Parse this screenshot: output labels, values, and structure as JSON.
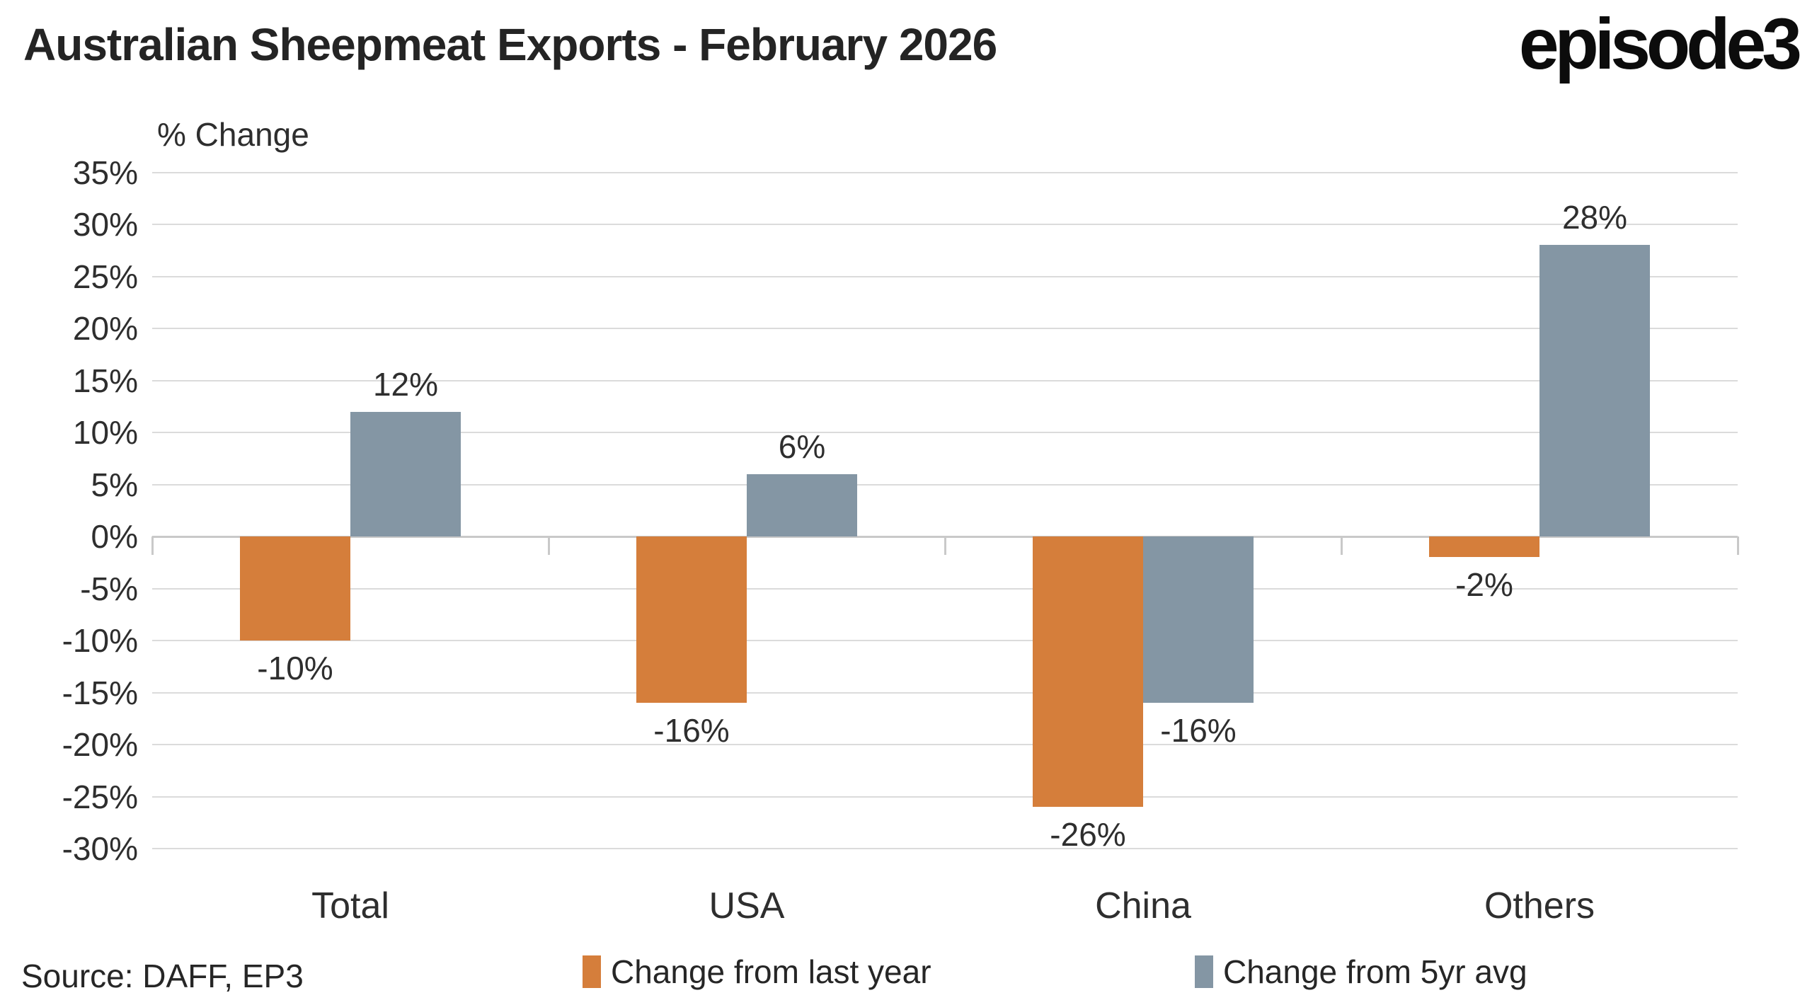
{
  "header": {
    "title": "Australian Sheepmeat Exports - February 2026",
    "logo_text": "episode3"
  },
  "footer": {
    "source": "Source: DAFF, EP3"
  },
  "chart_data": {
    "type": "bar",
    "title": "Australian Sheepmeat Exports - February 2026",
    "y_axis_label": "% Change",
    "categories": [
      "Total",
      "USA",
      "China",
      "Others"
    ],
    "series": [
      {
        "name": "Change from last year",
        "color": "#D57E3B",
        "values": [
          -10,
          -16,
          -26,
          -2
        ]
      },
      {
        "name": "Change from 5yr avg",
        "color": "#8496A4",
        "values": [
          12,
          6,
          -16,
          28
        ]
      }
    ],
    "value_labels": [
      [
        "-10%",
        "-16%",
        "-26%",
        "-2%"
      ],
      [
        "12%",
        "6%",
        "-16%",
        "28%"
      ]
    ],
    "ylim": [
      -30,
      35
    ],
    "ytick_step": 5,
    "ytick_labels": [
      "35%",
      "30%",
      "25%",
      "20%",
      "15%",
      "10%",
      "5%",
      "0%",
      "-5%",
      "-10%",
      "-15%",
      "-20%",
      "-25%",
      "-30%"
    ],
    "grid": true,
    "legend_position": "bottom",
    "colors": {
      "grid": "#DBDBDB",
      "zero_line": "#C9C9C9",
      "text": "#2E2E2E"
    }
  }
}
